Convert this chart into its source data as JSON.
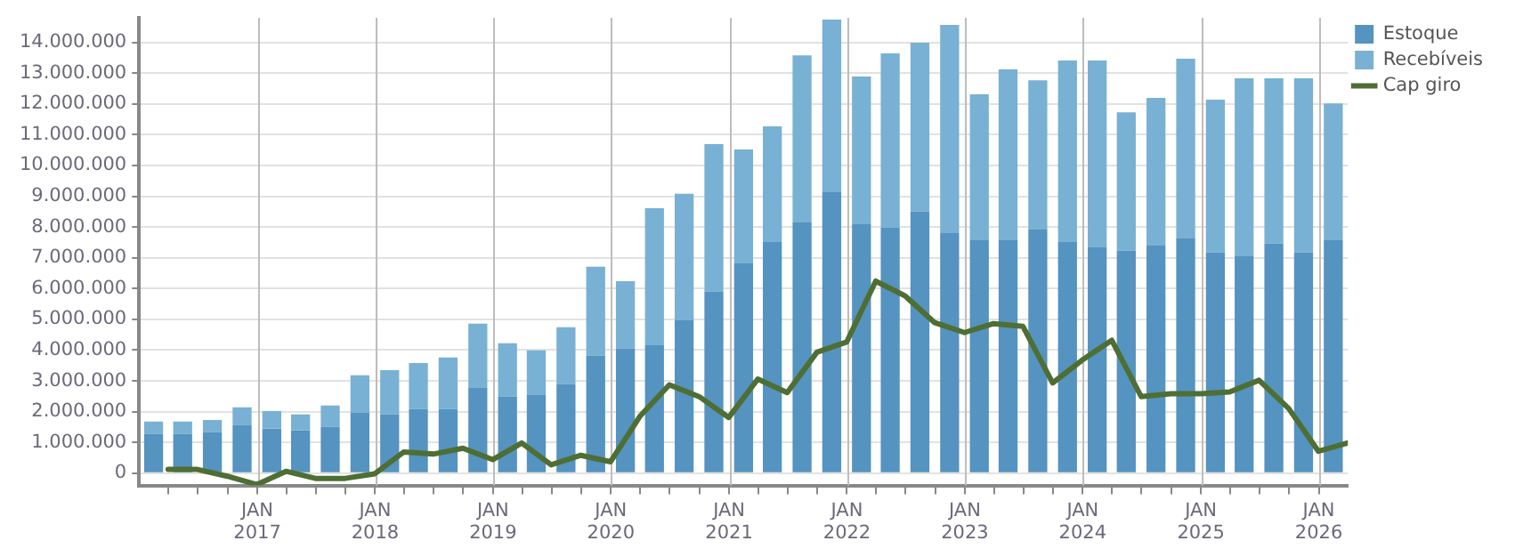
{
  "chart_data": {
    "type": "bar",
    "stacked": true,
    "grid": true,
    "legend": "top right",
    "marker": "none",
    "line_style": "solid",
    "x": [
      "2016-02-15",
      "2016-05-15",
      "2016-08-15",
      "2016-11-15",
      "2017-02-15",
      "2017-05-15",
      "2017-08-15",
      "2017-11-15",
      "2018-02-15",
      "2018-05-15",
      "2018-08-15",
      "2018-11-15",
      "2019-02-15",
      "2019-05-15",
      "2019-08-15",
      "2019-11-15",
      "2020-02-15",
      "2020-05-15",
      "2020-08-15",
      "2020-11-15",
      "2021-02-15",
      "2021-05-15",
      "2021-08-15",
      "2021-11-15",
      "2022-02-15",
      "2022-05-15",
      "2022-08-15",
      "2022-11-15",
      "2023-02-15",
      "2023-05-15",
      "2023-08-15",
      "2023-11-15",
      "2024-02-15",
      "2024-05-15",
      "2024-08-15",
      "2024-11-15",
      "2025-02-15",
      "2025-05-15",
      "2025-08-15",
      "2025-11-15",
      "2026-02-15"
    ],
    "series": [
      {
        "name": "Estoque",
        "color": "#5593c0",
        "values": [
          1270000,
          1270000,
          1330000,
          1560000,
          1450000,
          1390000,
          1500000,
          1970000,
          1910000,
          2080000,
          2080000,
          2770000,
          2490000,
          2540000,
          2890000,
          3820000,
          4050000,
          4160000,
          4980000,
          5900000,
          6820000,
          7510000,
          8150000,
          9130000,
          8090000,
          7980000,
          8500000,
          7800000,
          7570000,
          7570000,
          7920000,
          7510000,
          7340000,
          7230000,
          7400000,
          7630000,
          7170000,
          7050000,
          7460000,
          7170000,
          7570000
        ]
      },
      {
        "name": "Recebíveis",
        "color": "#78b1d3",
        "values": [
          410000,
          410000,
          400000,
          580000,
          570000,
          520000,
          700000,
          1210000,
          1440000,
          1500000,
          1680000,
          2090000,
          1730000,
          1450000,
          1850000,
          2890000,
          2190000,
          4450000,
          4100000,
          4790000,
          3700000,
          3760000,
          5430000,
          5610000,
          4800000,
          5660000,
          5490000,
          6770000,
          4740000,
          5550000,
          4850000,
          5900000,
          6070000,
          4500000,
          4800000,
          5840000,
          4970000,
          5780000,
          5370000,
          5660000,
          4450000
        ]
      },
      {
        "name": "Cap giro",
        "type": "line",
        "color": "#4e6e34",
        "x": [
          "2016-03-31",
          "2016-06-30",
          "2016-09-30",
          "2016-12-31",
          "2017-03-31",
          "2017-06-30",
          "2017-09-30",
          "2017-12-31",
          "2018-03-31",
          "2018-06-30",
          "2018-09-30",
          "2018-12-31",
          "2019-03-31",
          "2019-06-30",
          "2019-09-30",
          "2019-12-31",
          "2020-03-31",
          "2020-06-30",
          "2020-09-30",
          "2020-12-31",
          "2021-03-31",
          "2021-06-30",
          "2021-09-30",
          "2021-12-31",
          "2022-03-31",
          "2022-06-30",
          "2022-09-30",
          "2022-12-31",
          "2023-03-31",
          "2023-06-30",
          "2023-09-30",
          "2023-12-31",
          "2024-03-31",
          "2024-06-30",
          "2024-09-30",
          "2024-12-31",
          "2025-03-31",
          "2025-06-30",
          "2025-09-30",
          "2025-12-31",
          "2026-03-31"
        ],
        "values": [
          120000,
          120000,
          -100000,
          -370000,
          60000,
          -170000,
          -170000,
          -20000,
          690000,
          620000,
          810000,
          440000,
          980000,
          270000,
          580000,
          370000,
          1850000,
          2870000,
          2490000,
          1810000,
          3060000,
          2620000,
          3930000,
          4260000,
          6240000,
          5760000,
          4890000,
          4570000,
          4860000,
          4770000,
          2930000,
          3680000,
          4320000,
          2490000,
          2580000,
          2580000,
          2640000,
          3020000,
          2100000,
          710000,
          980000
        ]
      }
    ],
    "ylim": [
      -400000,
      14800000
    ],
    "yticks": [
      0,
      {
        "value": 1000000,
        "label": "1.000.000"
      },
      {
        "value": 2000000,
        "label": "2.000.000"
      },
      {
        "value": 3000000,
        "label": "3.000.000"
      },
      {
        "value": 4000000,
        "label": "4.000.000"
      },
      {
        "value": 5000000,
        "label": "5.000.000"
      },
      {
        "value": 6000000,
        "label": "6.000.000"
      },
      {
        "value": 7000000,
        "label": "7.000.000"
      },
      {
        "value": 8000000,
        "label": "8.000.000"
      },
      {
        "value": 9000000,
        "label": "9.000.000"
      },
      {
        "value": 10000000,
        "label": "10.000.000"
      },
      {
        "value": 11000000,
        "label": "11.000.000"
      },
      {
        "value": 12000000,
        "label": "12.000.000"
      },
      {
        "value": 13000000,
        "label": "13.000.000"
      },
      {
        "value": 14000000,
        "label": "14.000.000"
      }
    ],
    "xlim": [
      "2016-01-01",
      "2026-04-01"
    ],
    "xticks": [
      {
        "value": "2016-04-01",
        "label": null
      },
      {
        "value": "2016-07-01",
        "label": null
      },
      {
        "value": "2016-10-01",
        "label": null
      },
      {
        "value": "2017-01-01",
        "label": "JAN 2017"
      },
      {
        "value": "2017-04-01",
        "label": null
      },
      {
        "value": "2017-07-01",
        "label": null
      },
      {
        "value": "2017-10-01",
        "label": null
      },
      {
        "value": "2018-01-01",
        "label": "JAN 2018"
      },
      {
        "value": "2018-04-01",
        "label": null
      },
      {
        "value": "2018-07-01",
        "label": null
      },
      {
        "value": "2018-10-01",
        "label": null
      },
      {
        "value": "2019-01-01",
        "label": "JAN 2019"
      },
      {
        "value": "2019-04-01",
        "label": null
      },
      {
        "value": "2019-07-01",
        "label": null
      },
      {
        "value": "2019-10-01",
        "label": null
      },
      {
        "value": "2020-01-01",
        "label": "JAN 2020"
      },
      {
        "value": "2020-04-01",
        "label": null
      },
      {
        "value": "2020-07-01",
        "label": null
      },
      {
        "value": "2020-10-01",
        "label": null
      },
      {
        "value": "2021-01-01",
        "label": "JAN 2021"
      },
      {
        "value": "2021-04-01",
        "label": null
      },
      {
        "value": "2021-07-01",
        "label": null
      },
      {
        "value": "2021-10-01",
        "label": null
      },
      {
        "value": "2022-01-01",
        "label": "JAN 2022"
      },
      {
        "value": "2022-04-01",
        "label": null
      },
      {
        "value": "2022-07-01",
        "label": null
      },
      {
        "value": "2022-10-01",
        "label": null
      },
      {
        "value": "2023-01-01",
        "label": "JAN 2023"
      },
      {
        "value": "2023-04-01",
        "label": null
      },
      {
        "value": "2023-07-01",
        "label": null
      },
      {
        "value": "2023-10-01",
        "label": null
      },
      {
        "value": "2024-01-01",
        "label": "JAN 2024"
      },
      {
        "value": "2024-04-01",
        "label": null
      },
      {
        "value": "2024-07-01",
        "label": null
      },
      {
        "value": "2024-10-01",
        "label": null
      },
      {
        "value": "2025-01-01",
        "label": "JAN 2025"
      },
      {
        "value": "2025-04-01",
        "label": null
      },
      {
        "value": "2025-07-01",
        "label": null
      },
      {
        "value": "2025-10-01",
        "label": null
      },
      {
        "value": "2026-01-01",
        "label": "JAN 2026"
      }
    ]
  }
}
